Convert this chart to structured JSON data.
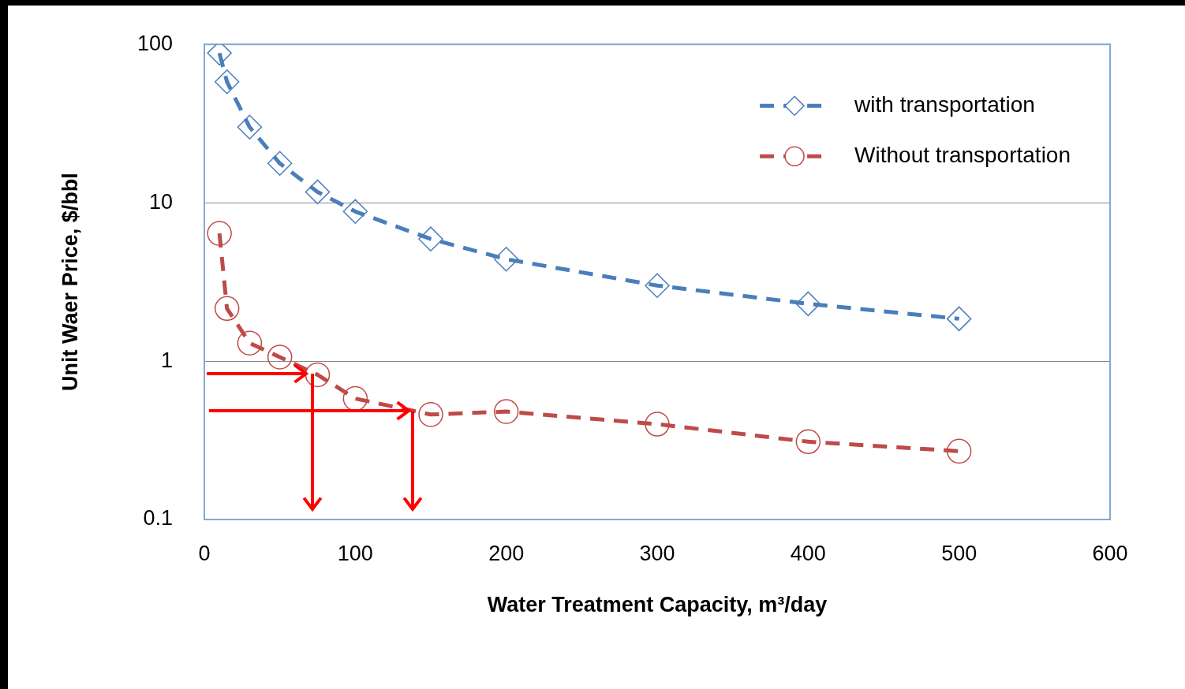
{
  "chart_data": {
    "type": "line",
    "xlabel": "Water Treatment Capacity, m³/day",
    "ylabel": "Unit Waer Price, $/bbl",
    "xlim": [
      0,
      600
    ],
    "xticks": [
      0,
      100,
      200,
      300,
      400,
      500,
      600
    ],
    "ylim": [
      0.1,
      100
    ],
    "yticks": [
      0.1,
      1,
      10,
      100
    ],
    "log": "y",
    "grid": "y",
    "legend": "top right",
    "line_style": "dashed",
    "x": [
      10,
      15,
      30,
      50,
      75,
      100,
      150,
      200,
      300,
      400,
      500
    ],
    "series": [
      {
        "name": "with transportation",
        "color": "#4a7ebb",
        "marker": "diamond",
        "values": [
          88,
          58,
          30,
          17.7,
          11.7,
          8.8,
          5.9,
          4.4,
          3.0,
          2.3,
          1.85
        ]
      },
      {
        "name": "Without transportation",
        "color": "#be4b48",
        "marker": "circle",
        "values": [
          6.4,
          2.15,
          1.3,
          1.06,
          0.82,
          0.58,
          0.46,
          0.48,
          0.4,
          0.31,
          0.27
        ]
      }
    ]
  }
}
